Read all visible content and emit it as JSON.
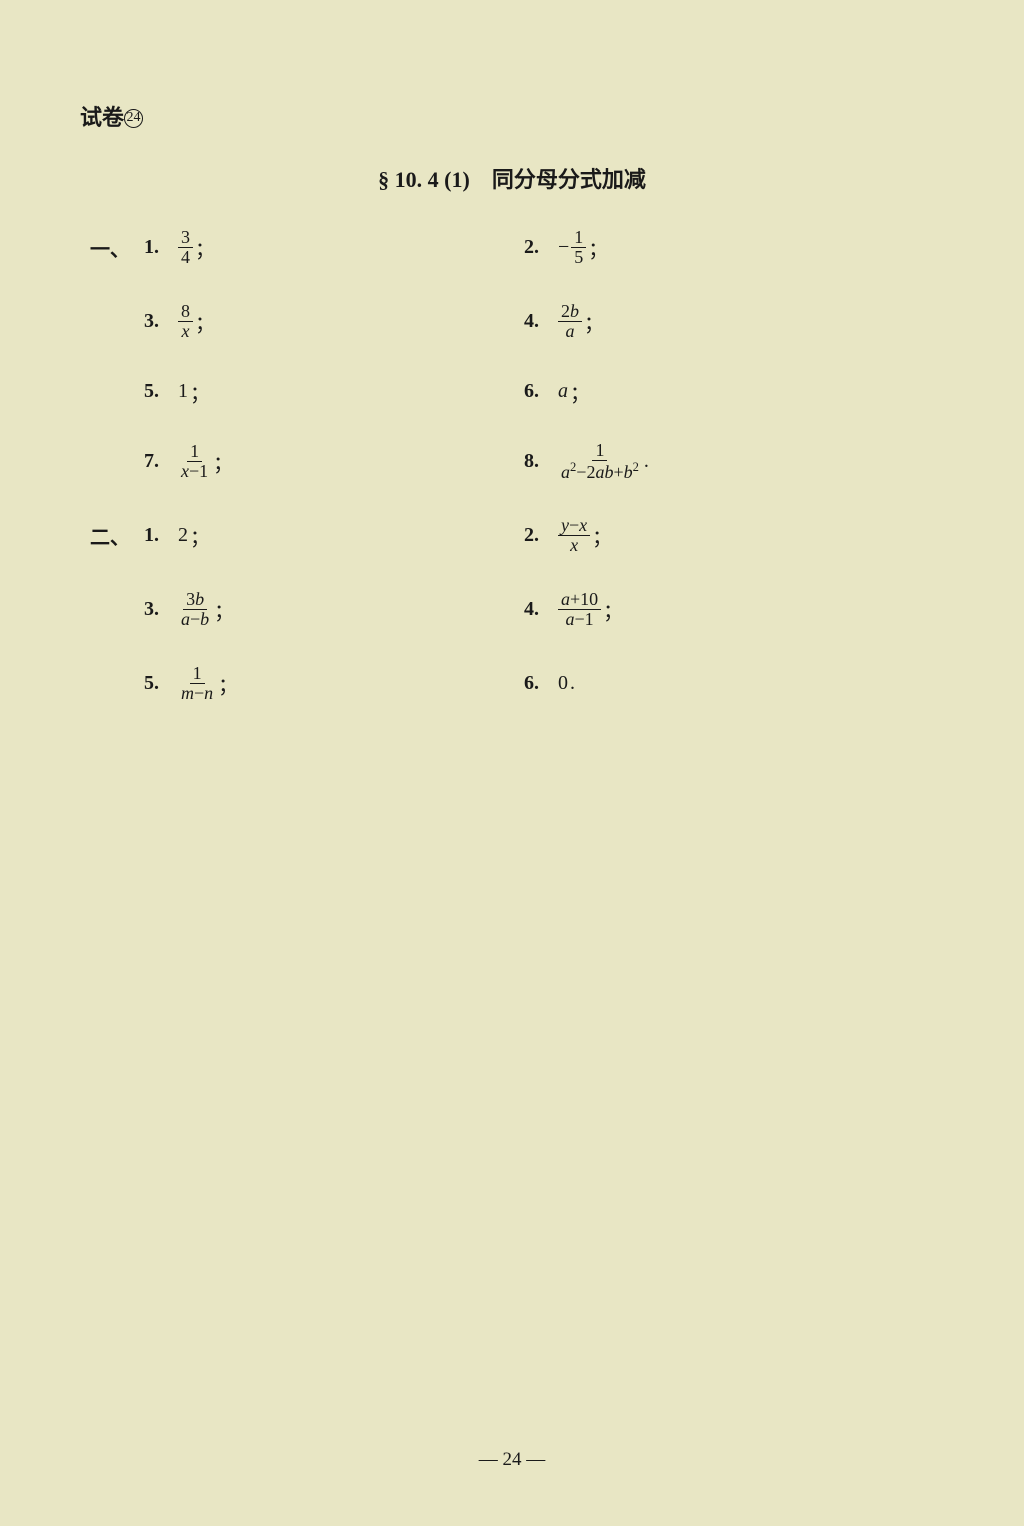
{
  "header": {
    "label_prefix": "试卷",
    "label_num": "24"
  },
  "section_title": "§ 10. 4 (1)　同分母分式加减",
  "page_number": "— 24 —",
  "groups": [
    {
      "marker": "一、",
      "rows": [
        {
          "left": {
            "num": "1.",
            "type": "frac",
            "top": "3",
            "bot": "4",
            "punct": "；"
          },
          "right": {
            "num": "2.",
            "type": "negfrac",
            "top": "1",
            "bot": "5",
            "punct": "；"
          }
        },
        {
          "left": {
            "num": "3.",
            "type": "frac",
            "top": "8",
            "bot_it": "x",
            "punct": "；"
          },
          "right": {
            "num": "4.",
            "type": "frac",
            "top_html": "2<span class=\"it\">b</span>",
            "bot_it": "a",
            "punct": "；"
          }
        },
        {
          "left": {
            "num": "5.",
            "type": "plain",
            "val": "1",
            "punct": "；"
          },
          "right": {
            "num": "6.",
            "type": "term",
            "val": "a",
            "punct": "；"
          }
        },
        {
          "left": {
            "num": "7.",
            "type": "frac",
            "top": "1",
            "bot_html": "<span class=\"it\">x</span>−1",
            "punct": "；"
          },
          "right": {
            "num": "8.",
            "type": "frac",
            "top": "1",
            "bot_html": "<span class=\"it\">a</span><span class=\"sup\">2</span>−2<span class=\"it\">ab</span>+<span class=\"it\">b</span><span class=\"sup\">2</span>",
            "punct": "."
          }
        }
      ]
    },
    {
      "marker": "二、",
      "rows": [
        {
          "left": {
            "num": "1.",
            "type": "plain",
            "val": "2",
            "punct": "；"
          },
          "right": {
            "num": "2.",
            "type": "frac",
            "top_html": "<span class=\"it\">y</span>−<span class=\"it\">x</span>",
            "bot_it": "x",
            "punct": "；"
          }
        },
        {
          "left": {
            "num": "3.",
            "type": "frac",
            "top_html": "3<span class=\"it\">b</span>",
            "bot_html": "<span class=\"it\">a</span>−<span class=\"it\">b</span>",
            "punct": "；"
          },
          "right": {
            "num": "4.",
            "type": "frac",
            "top_html": "<span class=\"it\">a</span>+10",
            "bot_html": "<span class=\"it\">a</span>−1",
            "punct": "；"
          }
        },
        {
          "left": {
            "num": "5.",
            "type": "frac",
            "top": "1",
            "bot_html": "<span class=\"it\">m</span>−<span class=\"it\">n</span>",
            "punct": "；"
          },
          "right": {
            "num": "6.",
            "type": "plain",
            "val": "0",
            "punct": "."
          }
        }
      ]
    }
  ]
}
